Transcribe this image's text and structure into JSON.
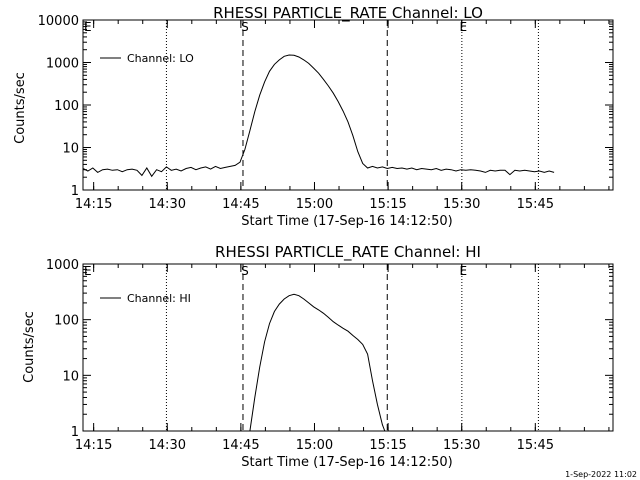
{
  "stamp": "1-Sep-2022 11:02",
  "chart_data": [
    {
      "type": "line",
      "title": "RHESSI PARTICLE_RATE Channel: LO",
      "xlabel": "Start Time (17-Sep-16 14:12:50)",
      "ylabel": "Counts/sec",
      "yscale": "log",
      "ylim": [
        1,
        10000
      ],
      "xlim_minutes": [
        0,
        108
      ],
      "ytick_labels": [
        "1",
        "10",
        "100",
        "1000",
        "10000"
      ],
      "ytick_values": [
        1,
        10,
        100,
        1000,
        10000
      ],
      "xtick_labels": [
        "14:15",
        "14:30",
        "14:45",
        "15:00",
        "15:15",
        "15:30",
        "15:45"
      ],
      "xtick_minutes": [
        2.17,
        17.17,
        32.17,
        47.17,
        62.17,
        77.17,
        92.17
      ],
      "legend": "Channel: LO",
      "markers": {
        "start_label": "S",
        "end_label": "E",
        "left_label": "E"
      },
      "dashed_lines_minutes": [
        32.6,
        62.0
      ],
      "dotted_lines_minutes": [
        17.0,
        77.2,
        92.8
      ],
      "marker_minutes": {
        "S": 33.0,
        "E": 77.5
      },
      "series": [
        {
          "name": "Channel: LO",
          "x": [
            0,
            1,
            2,
            3,
            4,
            5,
            6,
            7,
            8,
            9,
            10,
            11,
            12,
            13,
            14,
            15,
            16,
            17,
            18,
            19,
            20,
            21,
            22,
            23,
            24,
            25,
            26,
            27,
            28,
            29,
            30,
            31,
            32,
            33,
            34,
            35,
            36,
            37,
            38,
            39,
            40,
            41,
            42,
            43,
            44,
            45,
            46,
            47,
            48,
            49,
            50,
            51,
            52,
            53,
            54,
            55,
            56,
            57,
            58,
            59,
            60,
            61,
            62,
            63,
            64,
            65,
            66,
            67,
            68,
            69,
            70,
            71,
            72,
            73,
            74,
            75,
            76,
            77,
            78,
            79,
            80,
            81,
            82,
            83,
            84,
            85,
            86,
            87,
            88,
            89,
            90,
            91,
            92,
            93,
            94,
            95,
            96
          ],
          "y": [
            3.2,
            2.8,
            3.3,
            2.6,
            3.0,
            3.1,
            2.9,
            3.0,
            2.7,
            3.0,
            3.1,
            2.9,
            2.2,
            3.3,
            2.1,
            3.0,
            2.7,
            3.5,
            2.9,
            3.1,
            2.8,
            3.2,
            3.4,
            3.0,
            3.3,
            3.5,
            3.1,
            3.6,
            3.2,
            3.4,
            3.6,
            3.8,
            4.5,
            9,
            25,
            70,
            170,
            350,
            620,
            900,
            1150,
            1400,
            1500,
            1480,
            1350,
            1150,
            950,
            740,
            560,
            400,
            280,
            190,
            120,
            72,
            40,
            19,
            8,
            4.2,
            3.3,
            3.6,
            3.3,
            3.5,
            3.2,
            3.4,
            3.2,
            3.3,
            3.1,
            3.3,
            3.0,
            3.2,
            3.1,
            3.0,
            3.2,
            2.9,
            3.1,
            3.0,
            2.8,
            3.0,
            2.9,
            3.0,
            2.9,
            2.8,
            2.6,
            2.9,
            2.8,
            2.9,
            2.9,
            2.3,
            2.9,
            2.8,
            2.9,
            2.8,
            2.7,
            2.8,
            2.6,
            2.8,
            2.6
          ]
        }
      ]
    },
    {
      "type": "line",
      "title": "RHESSI PARTICLE_RATE Channel: HI",
      "xlabel": "Start Time (17-Sep-16 14:12:50)",
      "ylabel": "Counts/sec",
      "yscale": "log",
      "ylim": [
        1,
        1000
      ],
      "xlim_minutes": [
        0,
        108
      ],
      "ytick_labels": [
        "1",
        "10",
        "100",
        "1000"
      ],
      "ytick_values": [
        1,
        10,
        100,
        1000
      ],
      "xtick_labels": [
        "14:15",
        "14:30",
        "14:45",
        "15:00",
        "15:15",
        "15:30",
        "15:45"
      ],
      "xtick_minutes": [
        2.17,
        17.17,
        32.17,
        47.17,
        62.17,
        77.17,
        92.17
      ],
      "legend": "Channel: HI",
      "markers": {
        "start_label": "S",
        "end_label": "E",
        "left_label": "E"
      },
      "dashed_lines_minutes": [
        32.6,
        62.0
      ],
      "dotted_lines_minutes": [
        17.0,
        77.2,
        92.8
      ],
      "marker_minutes": {
        "S": 33.0,
        "E": 77.5
      },
      "series": [
        {
          "name": "Channel: HI",
          "x": [
            34.0,
            35,
            36,
            37,
            38,
            39,
            40,
            41,
            42,
            43,
            44,
            45,
            46,
            47,
            48,
            49,
            50,
            51,
            52,
            53,
            54,
            55,
            56,
            57,
            58,
            59,
            60,
            61,
            61.5
          ],
          "y": [
            1,
            4,
            14,
            40,
            85,
            140,
            190,
            235,
            270,
            285,
            270,
            235,
            200,
            170,
            150,
            130,
            110,
            92,
            80,
            70,
            62,
            52,
            44,
            36,
            24,
            8,
            3,
            1.3,
            1
          ]
        }
      ]
    }
  ]
}
